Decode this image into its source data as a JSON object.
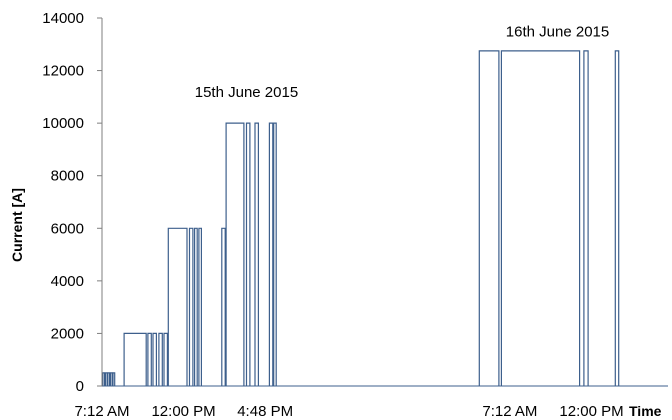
{
  "chart_data": {
    "type": "line",
    "xlabel": "Time",
    "ylabel": "Current [A]",
    "ylim": [
      0,
      14000
    ],
    "yticks": [
      0,
      2000,
      4000,
      6000,
      8000,
      10000,
      12000,
      14000
    ],
    "xticks": [
      {
        "t": 0,
        "label": "7:12 AM"
      },
      {
        "t": 4.8,
        "label": "12:00 PM"
      },
      {
        "t": 9.6,
        "label": "4:48 PM"
      },
      {
        "t": 24,
        "label": "7:12 AM"
      },
      {
        "t": 28.8,
        "label": "12:00 PM"
      }
    ],
    "xlim_hours": [
      0,
      33.3
    ],
    "annotations": [
      {
        "text": "15th June 2015",
        "t": 8.5,
        "y": 11000
      },
      {
        "text": "16th June 2015",
        "t": 26.8,
        "y": 13300
      }
    ],
    "color": "#3d5f8c",
    "series": [
      {
        "pulses": [
          {
            "start": 0.05,
            "end": 0.15,
            "value": 500
          },
          {
            "start": 0.2,
            "end": 0.3,
            "value": 500
          },
          {
            "start": 0.35,
            "end": 0.45,
            "value": 500
          },
          {
            "start": 0.5,
            "end": 0.6,
            "value": 500
          },
          {
            "start": 0.65,
            "end": 0.75,
            "value": 500
          },
          {
            "start": 1.3,
            "end": 2.6,
            "value": 2000
          },
          {
            "start": 2.7,
            "end": 2.9,
            "value": 2000
          },
          {
            "start": 3.0,
            "end": 3.2,
            "value": 2000
          },
          {
            "start": 3.35,
            "end": 3.55,
            "value": 2000
          },
          {
            "start": 3.65,
            "end": 3.85,
            "value": 2000
          },
          {
            "start": 3.9,
            "end": 5.0,
            "value": 6000
          },
          {
            "start": 5.15,
            "end": 5.35,
            "value": 6000
          },
          {
            "start": 5.45,
            "end": 5.6,
            "value": 6000
          },
          {
            "start": 5.7,
            "end": 5.85,
            "value": 6000
          },
          {
            "start": 7.05,
            "end": 7.25,
            "value": 6000
          },
          {
            "start": 7.3,
            "end": 8.35,
            "value": 10000
          },
          {
            "start": 8.5,
            "end": 8.7,
            "value": 10000
          },
          {
            "start": 9.0,
            "end": 9.2,
            "value": 10000
          },
          {
            "start": 9.85,
            "end": 10.05,
            "value": 10000
          },
          {
            "start": 10.1,
            "end": 10.25,
            "value": 10000
          },
          {
            "start": 22.2,
            "end": 23.35,
            "value": 12750
          },
          {
            "start": 23.5,
            "end": 28.1,
            "value": 12750
          },
          {
            "start": 28.35,
            "end": 28.6,
            "value": 12750
          },
          {
            "start": 30.2,
            "end": 30.4,
            "value": 12750
          }
        ]
      }
    ]
  }
}
